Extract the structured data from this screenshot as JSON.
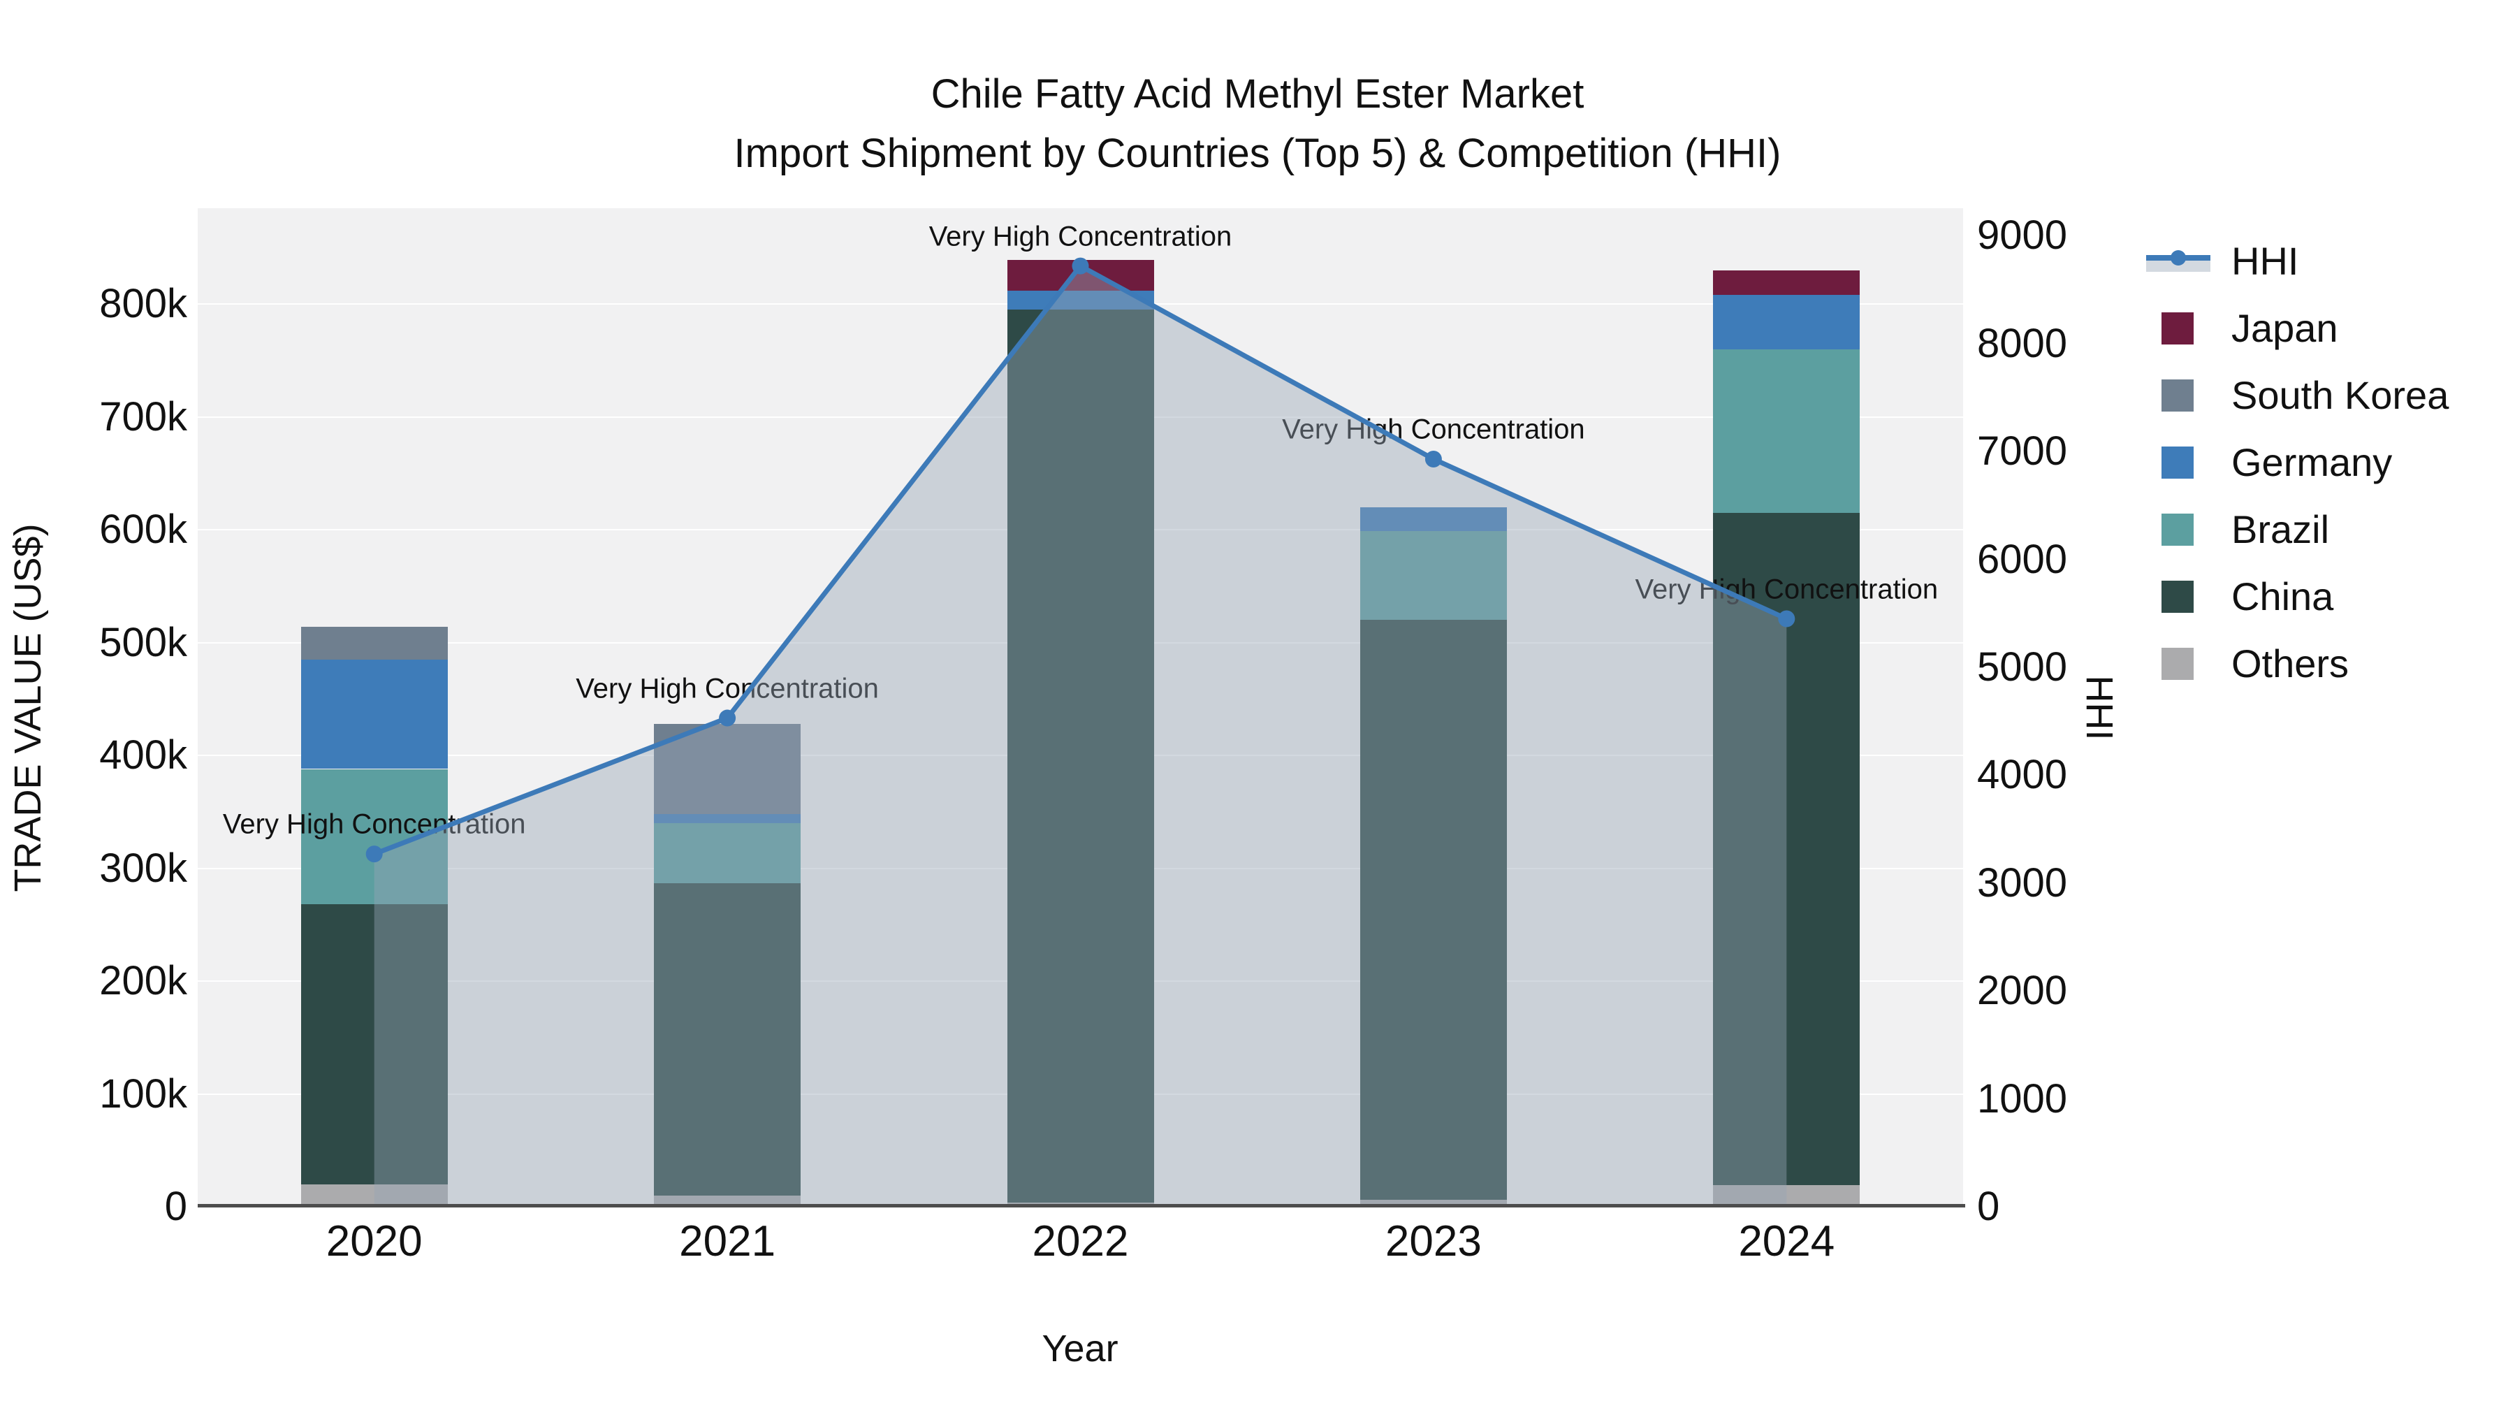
{
  "title": {
    "line1": "Chile Fatty Acid Methyl Ester Market",
    "line2": "Import Shipment by Countries (Top 5) & Competition (HHI)"
  },
  "axes": {
    "x": {
      "title": "Year",
      "tick_labels": [
        "2020",
        "2021",
        "2022",
        "2023",
        "2024"
      ]
    },
    "y_left": {
      "title": "TRADE VALUE (US$)",
      "tick_values": [
        0,
        100000,
        200000,
        300000,
        400000,
        500000,
        600000,
        700000,
        800000
      ],
      "tick_labels": [
        "0",
        "100k",
        "200k",
        "300k",
        "400k",
        "500k",
        "600k",
        "700k",
        "800k"
      ]
    },
    "y_right": {
      "title": "HHI",
      "tick_values": [
        0,
        1000,
        2000,
        3000,
        4000,
        5000,
        6000,
        7000,
        8000,
        9000
      ],
      "tick_labels": [
        "0",
        "1000",
        "2000",
        "3000",
        "4000",
        "5000",
        "6000",
        "7000",
        "8000",
        "9000"
      ]
    }
  },
  "legend": {
    "items": [
      {
        "label": "HHI",
        "marker": "line"
      },
      {
        "label": "Japan",
        "marker": "swatch"
      },
      {
        "label": "South Korea",
        "marker": "swatch"
      },
      {
        "label": "Germany",
        "marker": "swatch"
      },
      {
        "label": "Brazil",
        "marker": "swatch"
      },
      {
        "label": "China",
        "marker": "swatch"
      },
      {
        "label": "Others",
        "marker": "swatch"
      }
    ]
  },
  "chart_data": {
    "type": "stacked-bar+line",
    "title": "Chile Fatty Acid Methyl Ester Market — Import Shipment by Countries (Top 5) & Competition (HHI)",
    "xlabel": "Year",
    "ylabel": "TRADE VALUE (US$)",
    "y2label": "HHI",
    "categories": [
      "2020",
      "2021",
      "2022",
      "2023",
      "2024"
    ],
    "ylim": [
      0,
      885000
    ],
    "y2lim": [
      0,
      9255
    ],
    "grid": true,
    "legend_position": "right",
    "stack_series": [
      {
        "name": "Others",
        "color": "#ABABAD",
        "values": [
          20000,
          10000,
          4000,
          6000,
          19000
        ]
      },
      {
        "name": "China",
        "color": "#2E4A47",
        "values": [
          248000,
          277000,
          791000,
          514000,
          596000
        ]
      },
      {
        "name": "Brazil",
        "color": "#5C9FA0",
        "values": [
          120000,
          53000,
          0,
          79000,
          145000
        ]
      },
      {
        "name": "Germany",
        "color": "#3E7CB9",
        "values": [
          97000,
          8000,
          17000,
          21000,
          48000
        ]
      },
      {
        "name": "South Korea",
        "color": "#6F7F8F",
        "values": [
          29000,
          80000,
          0,
          0,
          0
        ]
      },
      {
        "name": "Japan",
        "color": "#6E1C3E",
        "values": [
          0,
          0,
          27000,
          0,
          22000
        ]
      }
    ],
    "bar_totals": [
      514000,
      428000,
      839000,
      620000,
      830000
    ],
    "line_series": {
      "name": "HHI",
      "color": "#3D7AB8",
      "fill_color": "rgba(150,164,181,0.42)",
      "values": [
        3270,
        4530,
        8720,
        6930,
        5450
      ]
    },
    "annotations": [
      {
        "text": "Very High Concentration",
        "category": "2020"
      },
      {
        "text": "Very High Concentration",
        "category": "2021"
      },
      {
        "text": "Very High Concentration",
        "category": "2022"
      },
      {
        "text": "Very High Concentration",
        "category": "2023"
      },
      {
        "text": "Very High Concentration",
        "category": "2024"
      }
    ]
  }
}
